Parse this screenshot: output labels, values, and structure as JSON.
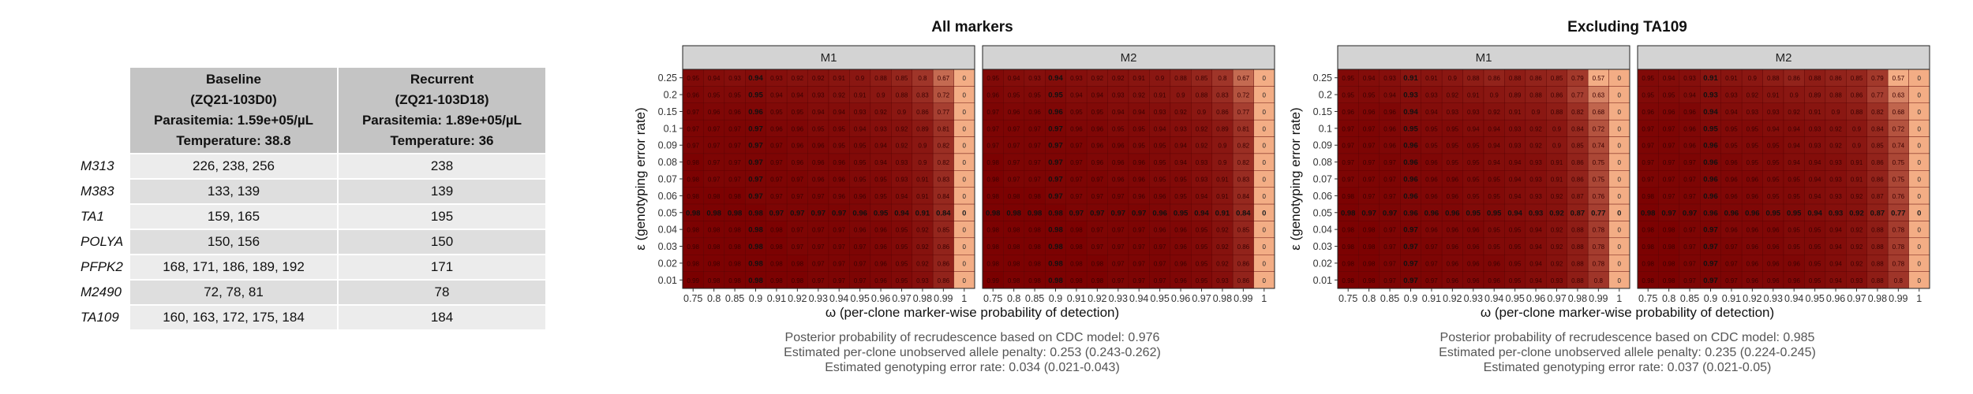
{
  "table": {
    "headers": [
      {
        "lines": [
          "Baseline",
          "(ZQ21-103D0)",
          "Parasitemia: 1.59e+05/µL",
          "Temperature: 38.8"
        ]
      },
      {
        "lines": [
          "Recurrent",
          "(ZQ21-103D18)",
          "Parasitemia: 1.89e+05/µL",
          "Temperature: 36"
        ]
      }
    ],
    "rows": [
      {
        "marker": "M313",
        "baseline": "226, 238, 256",
        "recurrent": "238"
      },
      {
        "marker": "M383",
        "baseline": "133, 139",
        "recurrent": "139"
      },
      {
        "marker": "TA1",
        "baseline": "159, 165",
        "recurrent": "195"
      },
      {
        "marker": "POLYA",
        "baseline": "150, 156",
        "recurrent": "150"
      },
      {
        "marker": "PFPK2",
        "baseline": "168, 171, 186, 189, 192",
        "recurrent": "171"
      },
      {
        "marker": "M2490",
        "baseline": "72, 78, 81",
        "recurrent": "78"
      },
      {
        "marker": "TA109",
        "baseline": "160, 163, 172, 175, 184",
        "recurrent": "184"
      }
    ]
  },
  "chart_data": [
    {
      "type": "heatmap",
      "title": "All markers",
      "xlabel": "ω (per-clone marker-wise probability of detection)",
      "ylabel": "ε (genotyping error rate)",
      "x": [
        "0.75",
        "0.8",
        "0.85",
        "0.9",
        "0.91",
        "0.92",
        "0.93",
        "0.94",
        "0.95",
        "0.96",
        "0.97",
        "0.98",
        "0.99",
        "1"
      ],
      "y": [
        "0.25",
        "0.2",
        "0.15",
        "0.1",
        "0.09",
        "0.08",
        "0.07",
        "0.06",
        "0.05",
        "0.04",
        "0.03",
        "0.02",
        "0.01"
      ],
      "highlight_column": "0.9",
      "highlight_row": "0.05",
      "colors": {
        "high": "#7a0000",
        "low": "#f3ad85",
        "border": "#222222",
        "panel_header": "#d3d3d3"
      },
      "panels": [
        {
          "name": "M1",
          "values": [
            [
              0.95,
              0.94,
              0.93,
              0.94,
              0.93,
              0.92,
              0.92,
              0.91,
              0.9,
              0.88,
              0.85,
              0.8,
              0.67,
              0
            ],
            [
              0.96,
              0.95,
              0.95,
              0.95,
              0.94,
              0.94,
              0.93,
              0.92,
              0.91,
              0.9,
              0.88,
              0.83,
              0.72,
              0
            ],
            [
              0.97,
              0.96,
              0.96,
              0.96,
              0.95,
              0.95,
              0.94,
              0.94,
              0.93,
              0.92,
              0.9,
              0.86,
              0.77,
              0
            ],
            [
              0.97,
              0.97,
              0.97,
              0.97,
              0.96,
              0.96,
              0.95,
              0.95,
              0.94,
              0.93,
              0.92,
              0.89,
              0.81,
              0
            ],
            [
              0.97,
              0.97,
              0.97,
              0.97,
              0.97,
              0.96,
              0.96,
              0.95,
              0.95,
              0.94,
              0.92,
              0.9,
              0.82,
              0
            ],
            [
              0.98,
              0.97,
              0.97,
              0.97,
              0.97,
              0.96,
              0.96,
              0.96,
              0.95,
              0.94,
              0.93,
              0.9,
              0.82,
              0
            ],
            [
              0.98,
              0.97,
              0.97,
              0.97,
              0.97,
              0.97,
              0.96,
              0.96,
              0.95,
              0.95,
              0.93,
              0.91,
              0.83,
              0
            ],
            [
              0.98,
              0.98,
              0.98,
              0.97,
              0.97,
              0.97,
              0.97,
              0.96,
              0.96,
              0.95,
              0.94,
              0.91,
              0.84,
              0
            ],
            [
              0.98,
              0.98,
              0.98,
              0.98,
              0.97,
              0.97,
              0.97,
              0.97,
              0.96,
              0.95,
              0.94,
              0.91,
              0.84,
              0
            ],
            [
              0.98,
              0.98,
              0.98,
              0.98,
              0.98,
              0.97,
              0.97,
              0.97,
              0.96,
              0.96,
              0.95,
              0.92,
              0.85,
              0
            ],
            [
              0.98,
              0.98,
              0.98,
              0.98,
              0.98,
              0.97,
              0.97,
              0.97,
              0.97,
              0.96,
              0.95,
              0.92,
              0.86,
              0
            ],
            [
              0.98,
              0.98,
              0.98,
              0.98,
              0.98,
              0.98,
              0.97,
              0.97,
              0.97,
              0.96,
              0.95,
              0.92,
              0.86,
              0
            ],
            [
              0.99,
              0.98,
              0.98,
              0.98,
              0.98,
              0.98,
              0.97,
              0.97,
              0.97,
              0.96,
              0.95,
              0.93,
              0.86,
              0
            ]
          ]
        },
        {
          "name": "M2",
          "values": [
            [
              0.95,
              0.94,
              0.93,
              0.94,
              0.93,
              0.92,
              0.92,
              0.91,
              0.9,
              0.88,
              0.85,
              0.8,
              0.67,
              0
            ],
            [
              0.96,
              0.95,
              0.95,
              0.95,
              0.94,
              0.94,
              0.93,
              0.92,
              0.91,
              0.9,
              0.88,
              0.83,
              0.72,
              0
            ],
            [
              0.97,
              0.96,
              0.96,
              0.96,
              0.95,
              0.95,
              0.94,
              0.94,
              0.93,
              0.92,
              0.9,
              0.86,
              0.77,
              0
            ],
            [
              0.97,
              0.97,
              0.97,
              0.97,
              0.96,
              0.96,
              0.95,
              0.95,
              0.94,
              0.93,
              0.92,
              0.89,
              0.81,
              0
            ],
            [
              0.97,
              0.97,
              0.97,
              0.97,
              0.97,
              0.96,
              0.96,
              0.95,
              0.95,
              0.94,
              0.92,
              0.9,
              0.82,
              0
            ],
            [
              0.98,
              0.97,
              0.97,
              0.97,
              0.97,
              0.96,
              0.96,
              0.96,
              0.95,
              0.94,
              0.93,
              0.9,
              0.82,
              0
            ],
            [
              0.98,
              0.97,
              0.97,
              0.97,
              0.97,
              0.97,
              0.96,
              0.96,
              0.95,
              0.95,
              0.93,
              0.91,
              0.83,
              0
            ],
            [
              0.98,
              0.98,
              0.98,
              0.97,
              0.97,
              0.97,
              0.97,
              0.96,
              0.96,
              0.95,
              0.94,
              0.91,
              0.84,
              0
            ],
            [
              0.98,
              0.98,
              0.98,
              0.98,
              0.97,
              0.97,
              0.97,
              0.97,
              0.96,
              0.95,
              0.94,
              0.91,
              0.84,
              0
            ],
            [
              0.98,
              0.98,
              0.98,
              0.98,
              0.98,
              0.97,
              0.97,
              0.97,
              0.96,
              0.96,
              0.95,
              0.92,
              0.85,
              0
            ],
            [
              0.98,
              0.98,
              0.98,
              0.98,
              0.98,
              0.97,
              0.97,
              0.97,
              0.97,
              0.96,
              0.95,
              0.92,
              0.86,
              0
            ],
            [
              0.98,
              0.98,
              0.98,
              0.98,
              0.98,
              0.98,
              0.97,
              0.97,
              0.97,
              0.96,
              0.95,
              0.92,
              0.86,
              0
            ],
            [
              0.99,
              0.98,
              0.98,
              0.98,
              0.98,
              0.98,
              0.97,
              0.97,
              0.97,
              0.96,
              0.95,
              0.93,
              0.86,
              0
            ]
          ]
        }
      ],
      "captions": [
        "Posterior probability of recrudescence based on CDC model: 0.976",
        "Estimated per-clone unobserved allele penalty: 0.253 (0.243-0.262)",
        "Estimated genotyping error rate: 0.034 (0.021-0.043)"
      ]
    },
    {
      "type": "heatmap",
      "title": "Excluding TA109",
      "xlabel": "ω (per-clone marker-wise probability of detection)",
      "ylabel": "ε (genotyping error rate)",
      "x": [
        "0.75",
        "0.8",
        "0.85",
        "0.9",
        "0.91",
        "0.92",
        "0.93",
        "0.94",
        "0.95",
        "0.96",
        "0.97",
        "0.98",
        "0.99",
        "1"
      ],
      "y": [
        "0.25",
        "0.2",
        "0.15",
        "0.1",
        "0.09",
        "0.08",
        "0.07",
        "0.06",
        "0.05",
        "0.04",
        "0.03",
        "0.02",
        "0.01"
      ],
      "highlight_column": "0.9",
      "highlight_row": "0.05",
      "colors": {
        "high": "#7a0000",
        "low": "#f3ad85",
        "border": "#222222",
        "panel_header": "#d3d3d3"
      },
      "panels": [
        {
          "name": "M1",
          "values": [
            [
              0.95,
              0.94,
              0.93,
              0.91,
              0.91,
              0.9,
              0.88,
              0.86,
              0.88,
              0.86,
              0.85,
              0.79,
              0.57,
              0
            ],
            [
              0.95,
              0.95,
              0.94,
              0.93,
              0.93,
              0.92,
              0.91,
              0.9,
              0.89,
              0.88,
              0.86,
              0.77,
              0.63,
              0
            ],
            [
              0.96,
              0.96,
              0.96,
              0.94,
              0.94,
              0.93,
              0.93,
              0.92,
              0.91,
              0.9,
              0.88,
              0.82,
              0.68,
              0
            ],
            [
              0.97,
              0.97,
              0.96,
              0.95,
              0.95,
              0.95,
              0.94,
              0.94,
              0.93,
              0.92,
              0.9,
              0.84,
              0.72,
              0
            ],
            [
              0.97,
              0.97,
              0.96,
              0.96,
              0.95,
              0.95,
              0.95,
              0.94,
              0.93,
              0.92,
              0.9,
              0.85,
              0.74,
              0
            ],
            [
              0.97,
              0.97,
              0.97,
              0.96,
              0.96,
              0.95,
              0.95,
              0.94,
              0.94,
              0.93,
              0.91,
              0.86,
              0.75,
              0
            ],
            [
              0.97,
              0.97,
              0.97,
              0.96,
              0.96,
              0.96,
              0.95,
              0.95,
              0.94,
              0.93,
              0.91,
              0.86,
              0.75,
              0
            ],
            [
              0.98,
              0.97,
              0.97,
              0.96,
              0.96,
              0.96,
              0.95,
              0.95,
              0.94,
              0.93,
              0.92,
              0.87,
              0.76,
              0
            ],
            [
              0.98,
              0.97,
              0.97,
              0.96,
              0.96,
              0.96,
              0.95,
              0.95,
              0.94,
              0.93,
              0.92,
              0.87,
              0.77,
              0
            ],
            [
              0.98,
              0.98,
              0.97,
              0.97,
              0.96,
              0.96,
              0.96,
              0.95,
              0.95,
              0.94,
              0.92,
              0.88,
              0.78,
              0
            ],
            [
              0.98,
              0.98,
              0.97,
              0.97,
              0.97,
              0.96,
              0.96,
              0.95,
              0.95,
              0.94,
              0.92,
              0.88,
              0.78,
              0
            ],
            [
              0.98,
              0.98,
              0.97,
              0.97,
              0.97,
              0.96,
              0.96,
              0.96,
              0.95,
              0.94,
              0.92,
              0.88,
              0.78,
              0
            ],
            [
              0.98,
              0.98,
              0.97,
              0.97,
              0.97,
              0.96,
              0.96,
              0.96,
              0.95,
              0.94,
              0.93,
              0.88,
              0.8,
              0
            ]
          ]
        },
        {
          "name": "M2",
          "values": [
            [
              0.95,
              0.94,
              0.93,
              0.91,
              0.91,
              0.9,
              0.88,
              0.86,
              0.88,
              0.86,
              0.85,
              0.79,
              0.57,
              0
            ],
            [
              0.95,
              0.95,
              0.94,
              0.93,
              0.93,
              0.92,
              0.91,
              0.9,
              0.89,
              0.88,
              0.86,
              0.77,
              0.63,
              0
            ],
            [
              0.96,
              0.96,
              0.96,
              0.94,
              0.94,
              0.93,
              0.93,
              0.92,
              0.91,
              0.9,
              0.88,
              0.82,
              0.68,
              0
            ],
            [
              0.97,
              0.97,
              0.96,
              0.95,
              0.95,
              0.95,
              0.94,
              0.94,
              0.93,
              0.92,
              0.9,
              0.84,
              0.72,
              0
            ],
            [
              0.97,
              0.97,
              0.96,
              0.96,
              0.95,
              0.95,
              0.95,
              0.94,
              0.93,
              0.92,
              0.9,
              0.85,
              0.74,
              0
            ],
            [
              0.97,
              0.97,
              0.97,
              0.96,
              0.96,
              0.95,
              0.95,
              0.94,
              0.94,
              0.93,
              0.91,
              0.86,
              0.75,
              0
            ],
            [
              0.97,
              0.97,
              0.97,
              0.96,
              0.96,
              0.96,
              0.95,
              0.95,
              0.94,
              0.93,
              0.91,
              0.86,
              0.75,
              0
            ],
            [
              0.98,
              0.97,
              0.97,
              0.96,
              0.96,
              0.96,
              0.95,
              0.95,
              0.94,
              0.93,
              0.92,
              0.87,
              0.76,
              0
            ],
            [
              0.98,
              0.97,
              0.97,
              0.96,
              0.96,
              0.96,
              0.95,
              0.95,
              0.94,
              0.93,
              0.92,
              0.87,
              0.77,
              0
            ],
            [
              0.98,
              0.98,
              0.97,
              0.97,
              0.96,
              0.96,
              0.96,
              0.95,
              0.95,
              0.94,
              0.92,
              0.88,
              0.78,
              0
            ],
            [
              0.98,
              0.98,
              0.97,
              0.97,
              0.97,
              0.96,
              0.96,
              0.95,
              0.95,
              0.94,
              0.92,
              0.88,
              0.78,
              0
            ],
            [
              0.98,
              0.98,
              0.97,
              0.97,
              0.97,
              0.96,
              0.96,
              0.96,
              0.95,
              0.94,
              0.92,
              0.88,
              0.78,
              0
            ],
            [
              0.98,
              0.98,
              0.97,
              0.97,
              0.97,
              0.96,
              0.96,
              0.96,
              0.95,
              0.94,
              0.93,
              0.88,
              0.8,
              0
            ]
          ]
        }
      ],
      "captions": [
        "Posterior probability of recrudescence based on CDC model: 0.985",
        "Estimated per-clone unobserved allele penalty: 0.235 (0.224-0.245)",
        "Estimated genotyping error rate: 0.037 (0.021-0.05)"
      ]
    }
  ]
}
